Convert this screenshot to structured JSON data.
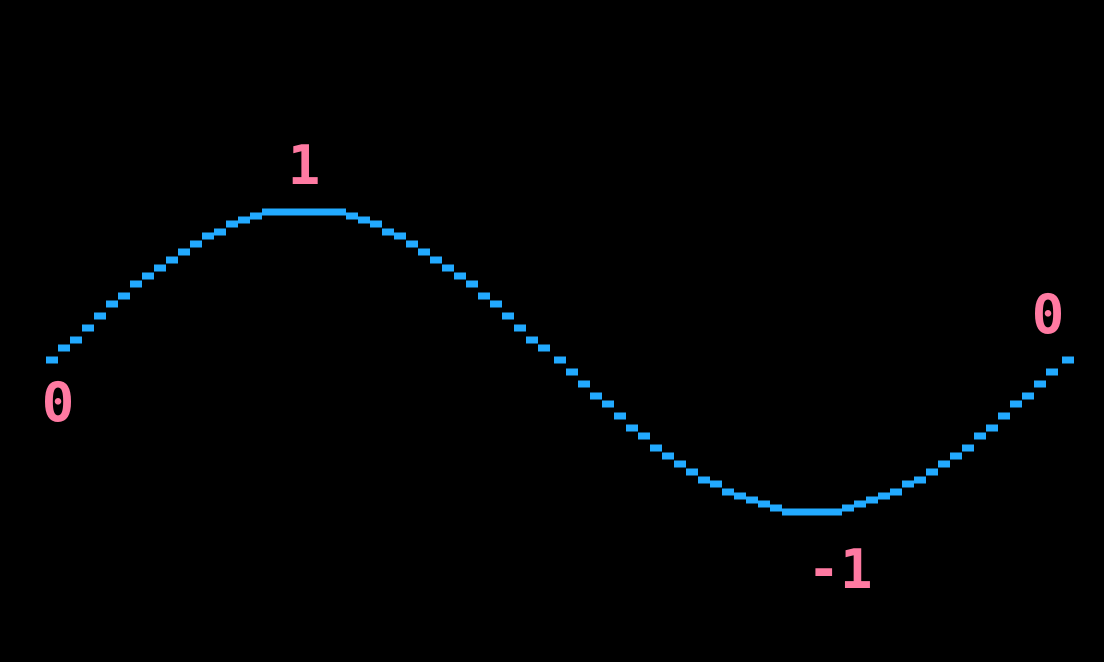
{
  "chart_data": {
    "type": "line",
    "series": [
      {
        "function": "sin",
        "x_start_deg": 0,
        "x_end_deg": 360,
        "samples": 85,
        "color": "#22aaff"
      }
    ],
    "ylim": [
      -1,
      1
    ],
    "grid": false,
    "annotations": [
      {
        "text": "0",
        "x_deg": 0,
        "y": 0,
        "place": "below"
      },
      {
        "text": "1",
        "x_deg": 90,
        "y": 1,
        "place": "above"
      },
      {
        "text": "-1",
        "x_deg": 270,
        "y": -1,
        "place": "below"
      },
      {
        "text": "0",
        "x_deg": 360,
        "y": 0,
        "place": "above"
      }
    ],
    "colors": {
      "background": "#000000",
      "line": "#22aaff",
      "labels": "#ff7aa2"
    }
  }
}
